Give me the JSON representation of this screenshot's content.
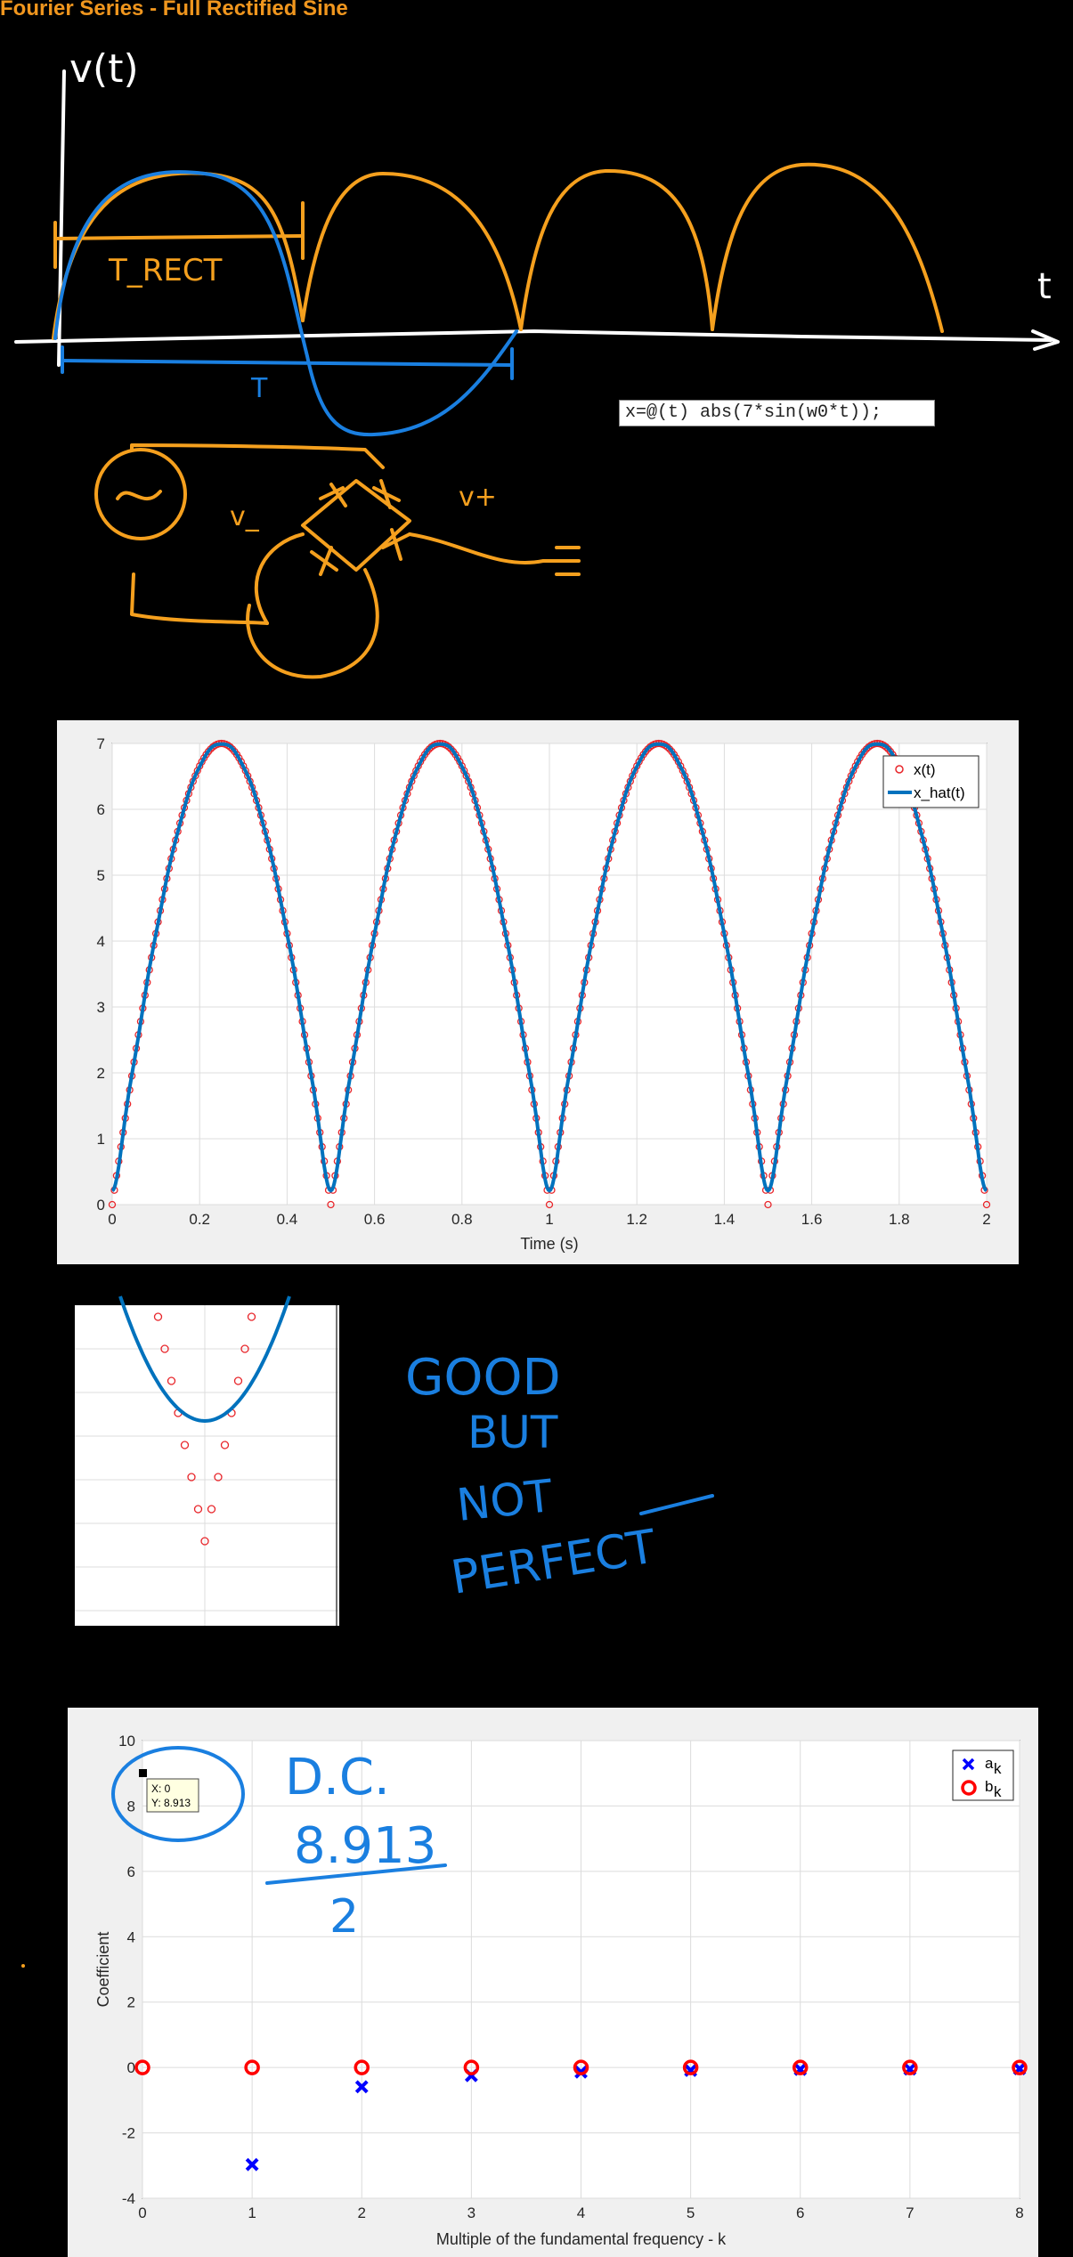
{
  "title": "Fourier Series - Full Rectified Sine",
  "code_snippet": "x=@(t) abs(7*sin(w0*t));",
  "sketch": {
    "v_label": "v(t)",
    "t_label": "t",
    "t_rect_label": "T_RECT",
    "t_period_label": "T",
    "v_minus": "v_",
    "v_plus": "v+"
  },
  "notes": {
    "line1": "GOOD",
    "line2": "BUT",
    "line3": "NOT",
    "line4": "PERFECT",
    "dc_label": "D.C.",
    "dc_num": "8.913",
    "dc_den": "2"
  },
  "datatip": {
    "x": "X: 0",
    "y": "Y: 8.913"
  },
  "chart_data": [
    {
      "type": "line",
      "title": "",
      "xlabel": "Time (s)",
      "ylabel": "",
      "xlim": [
        0,
        2
      ],
      "ylim": [
        0,
        7
      ],
      "x_ticks": [
        "0",
        "0.2",
        "0.4",
        "0.6",
        "0.8",
        "1",
        "1.2",
        "1.4",
        "1.6",
        "1.8",
        "2"
      ],
      "y_ticks": [
        "0",
        "1",
        "2",
        "3",
        "4",
        "5",
        "6",
        "7"
      ],
      "grid": true,
      "legend_position": "top-right",
      "series": [
        {
          "name": "x(t)",
          "function": "abs(7*sin(2*pi*t))",
          "style": "markers",
          "color": "#e8252a"
        },
        {
          "name": "x_hat(t)",
          "function": "Fourier approximation of abs(7*sin(2*pi*t))",
          "style": "line",
          "color": "#0072bd"
        }
      ]
    },
    {
      "type": "line",
      "title": "",
      "xlabel": "",
      "ylabel": "",
      "note": "zoomed view near a cusp; no tick labels shown",
      "series": [
        {
          "name": "x(t)",
          "style": "markers",
          "color": "#e8252a"
        },
        {
          "name": "x_hat(t)",
          "style": "line",
          "color": "#0072bd"
        }
      ]
    },
    {
      "type": "scatter",
      "title": "",
      "xlabel": "Multiple of the fundamental frequency - k",
      "ylabel": "Coefficient",
      "xlim": [
        0,
        8
      ],
      "ylim": [
        -4,
        10
      ],
      "x_ticks": [
        "0",
        "1",
        "2",
        "3",
        "4",
        "5",
        "6",
        "7",
        "8"
      ],
      "y_ticks": [
        "-4",
        "-2",
        "0",
        "2",
        "4",
        "6",
        "8",
        "10"
      ],
      "grid": true,
      "legend_position": "top-right",
      "x": [
        0,
        1,
        2,
        3,
        4,
        5,
        6,
        7,
        8
      ],
      "series": [
        {
          "name": "a_k",
          "legend_text": "a",
          "legend_sub": "k",
          "marker": "x",
          "color": "#0000ff",
          "values": [
            8.913,
            -2.97,
            -0.59,
            -0.25,
            -0.14,
            -0.09,
            -0.06,
            -0.05,
            -0.04
          ]
        },
        {
          "name": "b_k",
          "legend_text": "b",
          "legend_sub": "k",
          "marker": "o",
          "color": "#ff0000",
          "values": [
            0,
            0,
            0,
            0,
            0,
            0,
            0,
            0,
            0
          ]
        }
      ]
    }
  ],
  "colors": {
    "orange": "#f5a01e",
    "blue": "#1a7fe0",
    "matlab_blue": "#0072bd",
    "marker_red": "#e8252a"
  }
}
